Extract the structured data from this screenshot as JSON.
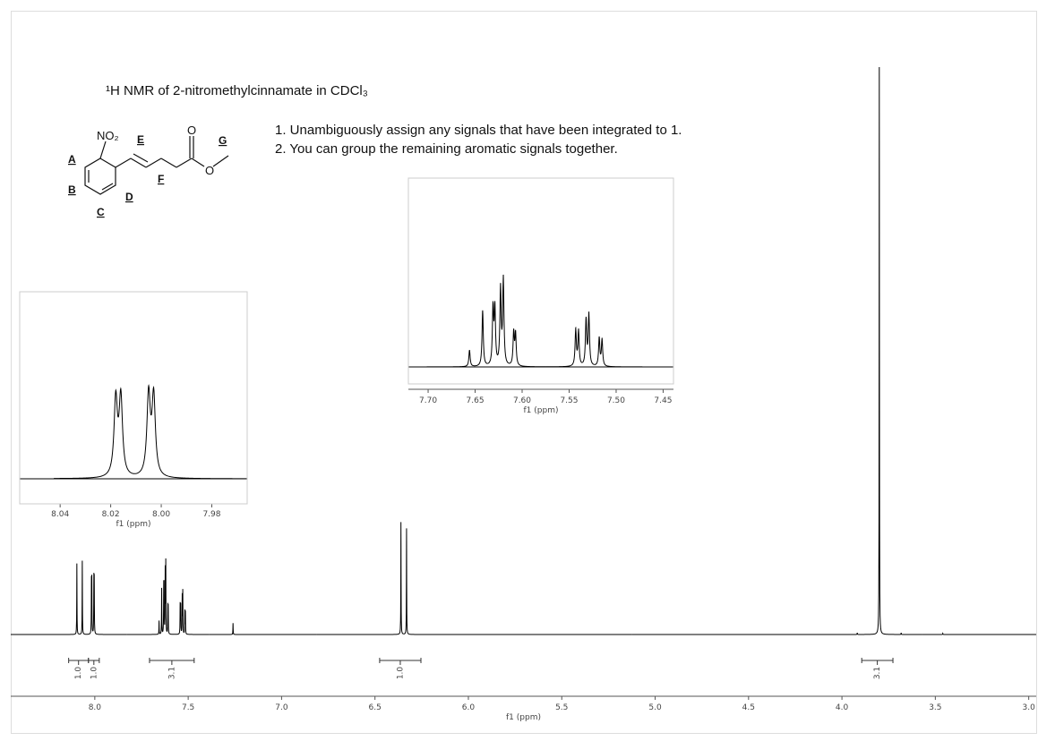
{
  "title": "¹H NMR of 2-nitromethylcinnamate in CDCl₃",
  "notes": [
    "1. Unambiguously assign any signals that have been integrated to 1.",
    "2. You can group the remaining aromatic signals together."
  ],
  "structure": {
    "atoms": [
      "NO₂",
      "O",
      "O"
    ],
    "protons": [
      "A",
      "B",
      "C",
      "D",
      "E",
      "F",
      "G"
    ]
  },
  "chart_data": [
    {
      "type": "nmr",
      "xlabel": "f1 (ppm)",
      "xlim": [
        8.45,
        2.96
      ],
      "xticks": [
        {
          "value": 8,
          "label": "8.0"
        },
        7.5,
        {
          "value": 7,
          "label": "7.0"
        },
        6.5,
        {
          "value": 6,
          "label": "6.0"
        },
        5.5,
        {
          "value": 5,
          "label": "5.0"
        },
        4.5,
        {
          "value": 4,
          "label": "4.0"
        },
        3.5,
        {
          "value": 3,
          "label": "3.0"
        }
      ],
      "x": [
        8.096,
        8.067,
        8.018,
        8.016,
        8.005,
        8.003,
        7.656,
        7.642,
        7.631,
        7.629,
        7.623,
        7.62,
        7.609,
        7.607,
        7.543,
        7.54,
        7.532,
        7.529,
        7.518,
        7.515,
        7.26,
        6.361,
        6.331,
        3.918,
        3.8,
        3.683,
        3.46
      ],
      "values": [
        12.5,
        13,
        9,
        9.2,
        9.5,
        9.3,
        2.4,
        8.1,
        8.2,
        8.1,
        11.1,
        12.5,
        4.8,
        4.6,
        5.3,
        5.1,
        6.7,
        7.5,
        4.1,
        3.9,
        2,
        19.8,
        18.7,
        0.3,
        100,
        0.3,
        0.2
      ],
      "integrals": {
        "ranges": [
          [
            8.14,
            8.034
          ],
          [
            8.034,
            7.976
          ],
          [
            7.707,
            7.468
          ],
          [
            6.475,
            6.254
          ],
          [
            3.894,
            3.727
          ]
        ],
        "values": [
          1.0,
          1.0,
          3.1,
          1.0,
          3.1
        ],
        "value_labels": [
          "1.0",
          "1.0",
          "3.1",
          "1.0",
          "3.1"
        ]
      }
    },
    {
      "type": "nmr-inset",
      "xlabel": "f1 (ppm)",
      "xlim": [
        8.056,
        7.966
      ],
      "xticks": [
        8.04,
        8.02,
        {
          "value": 8,
          "label": "8.00"
        },
        7.98
      ]
    },
    {
      "type": "nmr-inset",
      "xlabel": "f1 (ppm)",
      "xlim": [
        7.721,
        7.439
      ],
      "xticks": [
        {
          "value": 7.7,
          "label": "7.70"
        },
        7.65,
        {
          "value": 7.6,
          "label": "7.60"
        },
        7.55,
        {
          "value": 7.5,
          "label": "7.50"
        },
        7.45
      ]
    }
  ]
}
